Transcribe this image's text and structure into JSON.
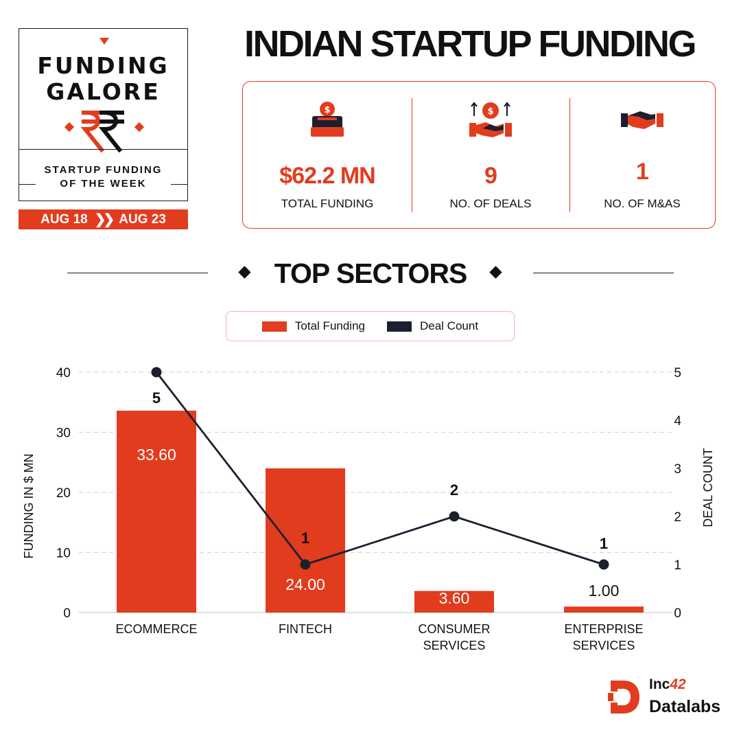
{
  "badge": {
    "title_line1": "FUNDING",
    "title_line2": "GALORE",
    "subtitle_line1": "STARTUP FUNDING",
    "subtitle_line2": "OF THE WEEK",
    "date_start": "AUG 18",
    "date_end": "AUG 23",
    "icon": "rupee-icon"
  },
  "title": "INDIAN STARTUP FUNDING",
  "stats": [
    {
      "icon": "money-box-icon",
      "value": "$62.2 MN",
      "label": "TOTAL FUNDING"
    },
    {
      "icon": "handshake-dollar-icon",
      "value": "9",
      "label": "NO. OF DEALS"
    },
    {
      "icon": "handshake-icon",
      "value": "1",
      "label": "NO. OF M&AS"
    }
  ],
  "section_title": "TOP SECTORS",
  "colors": {
    "accent": "#e23c1f",
    "dark": "#1b1f2e",
    "text": "#111111"
  },
  "chart_data": {
    "type": "bar",
    "categories": [
      "ECOMMERCE",
      "FINTECH",
      "CONSUMER SERVICES",
      "ENTERPRISE SERVICES"
    ],
    "series": [
      {
        "name": "Total Funding",
        "type": "bar",
        "axis": "left",
        "values": [
          33.6,
          24.0,
          3.6,
          1.0
        ],
        "labels": [
          "33.60",
          "24.00",
          "3.60",
          "1.00"
        ],
        "color": "#e23c1f"
      },
      {
        "name": "Deal Count",
        "type": "line",
        "axis": "right",
        "values": [
          5,
          1,
          2,
          1
        ],
        "labels": [
          "5",
          "1",
          "2",
          "1"
        ],
        "color": "#1b1f2e"
      }
    ],
    "ylabel": "FUNDING IN $ MN",
    "ylabel_right": "DEAL COUNT",
    "ylim": [
      0,
      40
    ],
    "yticks": [
      0,
      10,
      20,
      30,
      40
    ],
    "ylim_right": [
      0,
      5
    ],
    "yticks_right": [
      0,
      1,
      2,
      3,
      4,
      5
    ],
    "grid": true,
    "legend_position": "top-center"
  },
  "logo": {
    "line1": "Inc",
    "line1_accent": "42",
    "line2": "Datalabs"
  }
}
